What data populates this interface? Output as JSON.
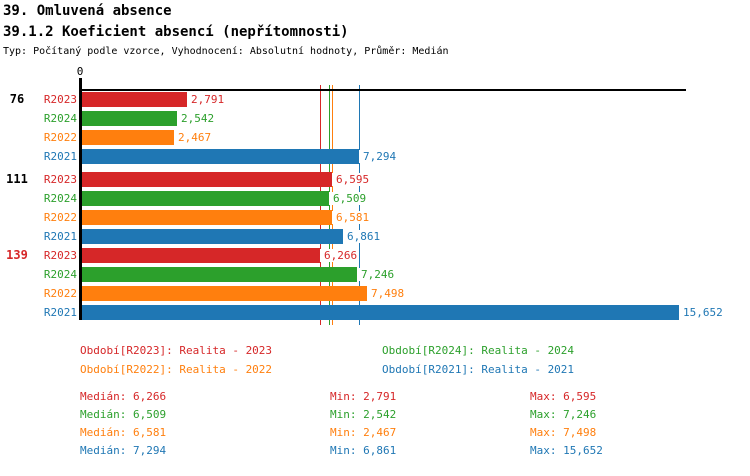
{
  "header": {
    "title": "39. Omluvená absence",
    "subtitle": "39.1.2 Koeficient absencí (nepřítomnosti)",
    "meta": "Typ: Počítaný podle vzorce, Vyhodnocení: Absolutní hodnoty, Průměr: Medián"
  },
  "chart_data": {
    "type": "bar",
    "orientation": "horizontal",
    "origin_tick_label": "0",
    "xmax": 15652,
    "grid": false,
    "legend_position": "below",
    "series": [
      {
        "id": "R2023",
        "label": "R2023",
        "color": "#d62728",
        "legend_label": "Období[R2023]: Realita - 2023",
        "median": 6266,
        "min": 2791,
        "max": 6595
      },
      {
        "id": "R2024",
        "label": "R2024",
        "color": "#2ca02c",
        "legend_label": "Období[R2024]: Realita - 2024",
        "median": 6509,
        "min": 2542,
        "max": 7246
      },
      {
        "id": "R2022",
        "label": "R2022",
        "color": "#ff7f0e",
        "legend_label": "Období[R2022]: Realita - 2022",
        "median": 6581,
        "min": 2467,
        "max": 7498
      },
      {
        "id": "R2021",
        "label": "R2021",
        "color": "#1f77b4",
        "legend_label": "Období[R2021]: Realita - 2021",
        "median": 7294,
        "min": 6861,
        "max": 15652
      }
    ],
    "groups": [
      {
        "label": "76",
        "label_color": "#000000",
        "values": [
          2791,
          2542,
          2467,
          7294
        ]
      },
      {
        "label": "111",
        "label_color": "#000000",
        "values": [
          6595,
          6509,
          6581,
          6861
        ]
      },
      {
        "label": "139",
        "label_color": "#d62728",
        "values": [
          6266,
          7246,
          7498,
          15652
        ]
      }
    ],
    "median_lines": [
      6266,
      6509,
      6581,
      7294
    ]
  },
  "stats": {
    "median_prefix": "Medián",
    "min_prefix": "Min",
    "max_prefix": "Max"
  }
}
